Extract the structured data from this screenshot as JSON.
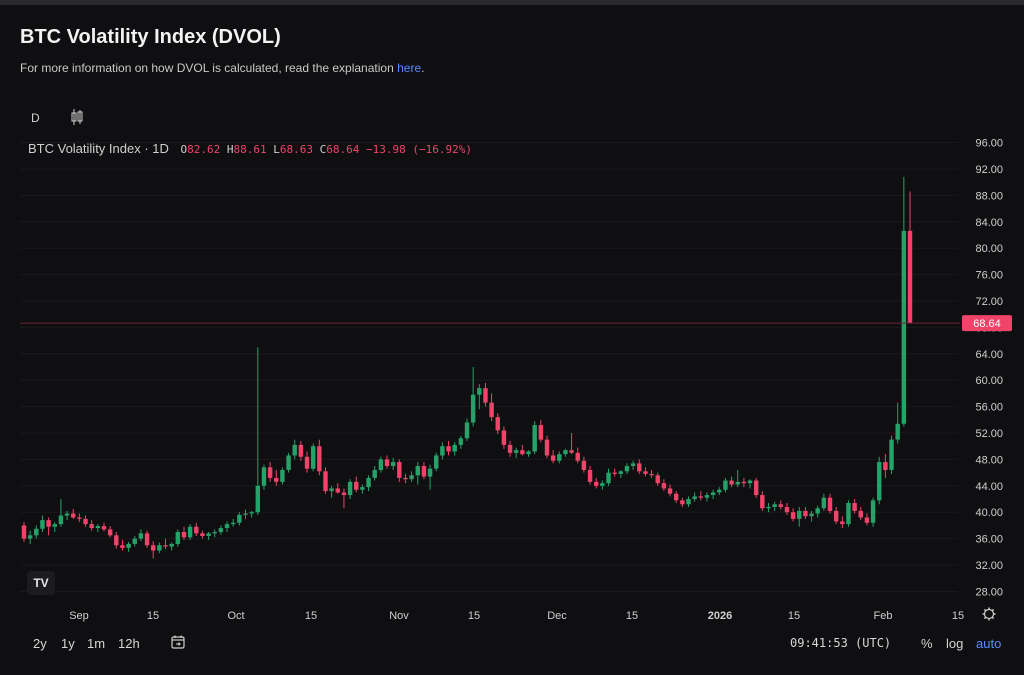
{
  "header": {
    "title": "BTC Volatility Index (DVOL)",
    "subtitle_text": "For more information on how DVOL is calculated, read the explanation ",
    "subtitle_link": "here",
    "subtitle_end": "."
  },
  "toolbar": {
    "interval_label": "D",
    "candle_icon": "candlestick-icon"
  },
  "legend": {
    "symbol": "BTC Volatility Index · 1D",
    "o_label": "O",
    "o": "82.62",
    "h_label": "H",
    "h": "88.61",
    "l_label": "L",
    "l": "68.63",
    "c_label": "C",
    "c": "68.64",
    "change": "−13.98 (−16.92%)"
  },
  "bottom": {
    "ranges": [
      "2y",
      "1y",
      "1m",
      "12h"
    ],
    "time": "09:41:53 (UTC)",
    "percent": "%",
    "log": "log",
    "auto": "auto"
  },
  "colors": {
    "up": "#26a269",
    "down": "#f0436a",
    "grid": "#1a1a1d",
    "text": "#cfcfcf"
  },
  "chart_data": {
    "type": "candlestick",
    "y_ticks": [
      "96.00",
      "92.00",
      "88.00",
      "84.00",
      "80.00",
      "76.00",
      "72.00",
      "68.00",
      "64.00",
      "60.00",
      "56.00",
      "52.00",
      "48.00",
      "44.00",
      "40.00",
      "36.00",
      "32.00",
      "28.00"
    ],
    "ylim": [
      26.4,
      97.6
    ],
    "x_ticks": [
      "Sep",
      "15",
      "Oct",
      "15",
      "Nov",
      "15",
      "Dec",
      "15",
      "2026",
      "15",
      "Feb",
      "15"
    ],
    "last_price_label": "68.64",
    "last_price": 68.64,
    "candles": [
      {
        "o": 38.0,
        "h": 38.5,
        "l": 35.5,
        "c": 36.0
      },
      {
        "o": 36.0,
        "h": 37.2,
        "l": 35.2,
        "c": 36.5
      },
      {
        "o": 36.5,
        "h": 38.0,
        "l": 36.0,
        "c": 37.5
      },
      {
        "o": 37.5,
        "h": 39.5,
        "l": 37.0,
        "c": 38.8
      },
      {
        "o": 38.8,
        "h": 39.2,
        "l": 36.5,
        "c": 37.8
      },
      {
        "o": 37.8,
        "h": 38.5,
        "l": 37.0,
        "c": 38.2
      },
      {
        "o": 38.2,
        "h": 42.0,
        "l": 37.8,
        "c": 39.5
      },
      {
        "o": 39.5,
        "h": 40.2,
        "l": 38.8,
        "c": 39.8
      },
      {
        "o": 39.8,
        "h": 40.5,
        "l": 39.0,
        "c": 39.2
      },
      {
        "o": 39.2,
        "h": 39.8,
        "l": 38.5,
        "c": 39.0
      },
      {
        "o": 39.0,
        "h": 39.5,
        "l": 37.8,
        "c": 38.2
      },
      {
        "o": 38.2,
        "h": 38.8,
        "l": 37.2,
        "c": 37.6
      },
      {
        "o": 37.6,
        "h": 38.2,
        "l": 37.0,
        "c": 37.9
      },
      {
        "o": 37.9,
        "h": 38.4,
        "l": 37.1,
        "c": 37.4
      },
      {
        "o": 37.4,
        "h": 37.9,
        "l": 36.2,
        "c": 36.5
      },
      {
        "o": 36.5,
        "h": 37.0,
        "l": 34.5,
        "c": 35.0
      },
      {
        "o": 35.0,
        "h": 35.8,
        "l": 34.2,
        "c": 34.6
      },
      {
        "o": 34.6,
        "h": 35.5,
        "l": 34.0,
        "c": 35.2
      },
      {
        "o": 35.2,
        "h": 36.4,
        "l": 34.8,
        "c": 36.0
      },
      {
        "o": 36.0,
        "h": 37.4,
        "l": 35.6,
        "c": 36.8
      },
      {
        "o": 36.8,
        "h": 37.2,
        "l": 34.6,
        "c": 35.0
      },
      {
        "o": 35.0,
        "h": 35.6,
        "l": 33.0,
        "c": 34.2
      },
      {
        "o": 34.2,
        "h": 35.4,
        "l": 33.8,
        "c": 35.0
      },
      {
        "o": 35.0,
        "h": 36.0,
        "l": 34.4,
        "c": 34.8
      },
      {
        "o": 34.8,
        "h": 35.4,
        "l": 34.2,
        "c": 35.2
      },
      {
        "o": 35.2,
        "h": 37.4,
        "l": 34.8,
        "c": 37.0
      },
      {
        "o": 37.0,
        "h": 37.8,
        "l": 35.8,
        "c": 36.2
      },
      {
        "o": 36.2,
        "h": 38.2,
        "l": 35.8,
        "c": 37.8
      },
      {
        "o": 37.8,
        "h": 38.4,
        "l": 36.4,
        "c": 36.8
      },
      {
        "o": 36.8,
        "h": 37.2,
        "l": 36.0,
        "c": 36.4
      },
      {
        "o": 36.4,
        "h": 37.0,
        "l": 35.8,
        "c": 36.8
      },
      {
        "o": 36.8,
        "h": 37.4,
        "l": 36.2,
        "c": 37.0
      },
      {
        "o": 37.0,
        "h": 38.0,
        "l": 36.6,
        "c": 37.6
      },
      {
        "o": 37.6,
        "h": 38.6,
        "l": 37.0,
        "c": 38.2
      },
      {
        "o": 38.2,
        "h": 39.0,
        "l": 37.8,
        "c": 38.4
      },
      {
        "o": 38.4,
        "h": 40.0,
        "l": 38.0,
        "c": 39.6
      },
      {
        "o": 39.6,
        "h": 40.4,
        "l": 39.0,
        "c": 39.8
      },
      {
        "o": 39.8,
        "h": 40.2,
        "l": 39.2,
        "c": 40.0
      },
      {
        "o": 40.0,
        "h": 65.0,
        "l": 39.6,
        "c": 44.0
      },
      {
        "o": 44.0,
        "h": 47.2,
        "l": 43.4,
        "c": 46.8
      },
      {
        "o": 46.8,
        "h": 47.6,
        "l": 44.6,
        "c": 45.2
      },
      {
        "o": 45.2,
        "h": 46.4,
        "l": 44.0,
        "c": 44.6
      },
      {
        "o": 44.6,
        "h": 46.8,
        "l": 44.2,
        "c": 46.4
      },
      {
        "o": 46.4,
        "h": 49.0,
        "l": 46.0,
        "c": 48.6
      },
      {
        "o": 48.6,
        "h": 51.0,
        "l": 48.0,
        "c": 50.2
      },
      {
        "o": 50.2,
        "h": 50.8,
        "l": 47.8,
        "c": 48.4
      },
      {
        "o": 48.4,
        "h": 49.2,
        "l": 46.0,
        "c": 46.6
      },
      {
        "o": 46.6,
        "h": 50.4,
        "l": 46.2,
        "c": 50.0
      },
      {
        "o": 50.0,
        "h": 51.0,
        "l": 45.6,
        "c": 46.2
      },
      {
        "o": 46.2,
        "h": 46.8,
        "l": 42.8,
        "c": 43.2
      },
      {
        "o": 43.2,
        "h": 44.0,
        "l": 42.2,
        "c": 43.6
      },
      {
        "o": 43.6,
        "h": 44.4,
        "l": 42.8,
        "c": 43.0
      },
      {
        "o": 43.0,
        "h": 43.6,
        "l": 40.6,
        "c": 42.6
      },
      {
        "o": 42.6,
        "h": 45.0,
        "l": 42.0,
        "c": 44.6
      },
      {
        "o": 44.6,
        "h": 45.4,
        "l": 43.0,
        "c": 43.4
      },
      {
        "o": 43.4,
        "h": 44.2,
        "l": 42.8,
        "c": 43.8
      },
      {
        "o": 43.8,
        "h": 45.6,
        "l": 43.2,
        "c": 45.2
      },
      {
        "o": 45.2,
        "h": 47.0,
        "l": 44.8,
        "c": 46.4
      },
      {
        "o": 46.4,
        "h": 48.4,
        "l": 46.0,
        "c": 48.0
      },
      {
        "o": 48.0,
        "h": 48.6,
        "l": 46.6,
        "c": 47.0
      },
      {
        "o": 47.0,
        "h": 48.2,
        "l": 46.4,
        "c": 47.6
      },
      {
        "o": 47.6,
        "h": 48.0,
        "l": 44.6,
        "c": 45.2
      },
      {
        "o": 45.2,
        "h": 45.8,
        "l": 44.4,
        "c": 45.0
      },
      {
        "o": 45.0,
        "h": 46.2,
        "l": 44.6,
        "c": 45.6
      },
      {
        "o": 45.6,
        "h": 47.6,
        "l": 44.2,
        "c": 47.0
      },
      {
        "o": 47.0,
        "h": 47.6,
        "l": 45.0,
        "c": 45.4
      },
      {
        "o": 45.4,
        "h": 47.2,
        "l": 43.4,
        "c": 46.6
      },
      {
        "o": 46.6,
        "h": 49.0,
        "l": 46.2,
        "c": 48.6
      },
      {
        "o": 48.6,
        "h": 50.6,
        "l": 48.0,
        "c": 50.0
      },
      {
        "o": 50.0,
        "h": 50.8,
        "l": 48.6,
        "c": 49.2
      },
      {
        "o": 49.2,
        "h": 50.6,
        "l": 48.6,
        "c": 50.2
      },
      {
        "o": 50.2,
        "h": 51.6,
        "l": 49.6,
        "c": 51.2
      },
      {
        "o": 51.2,
        "h": 54.2,
        "l": 50.8,
        "c": 53.6
      },
      {
        "o": 53.6,
        "h": 62.0,
        "l": 53.0,
        "c": 57.8
      },
      {
        "o": 57.8,
        "h": 59.4,
        "l": 55.6,
        "c": 58.8
      },
      {
        "o": 58.8,
        "h": 59.6,
        "l": 56.0,
        "c": 56.6
      },
      {
        "o": 56.6,
        "h": 58.0,
        "l": 53.8,
        "c": 54.4
      },
      {
        "o": 54.4,
        "h": 55.0,
        "l": 51.8,
        "c": 52.4
      },
      {
        "o": 52.4,
        "h": 53.0,
        "l": 49.6,
        "c": 50.2
      },
      {
        "o": 50.2,
        "h": 50.8,
        "l": 48.4,
        "c": 49.0
      },
      {
        "o": 49.0,
        "h": 49.8,
        "l": 48.2,
        "c": 49.4
      },
      {
        "o": 49.4,
        "h": 50.2,
        "l": 48.6,
        "c": 48.8
      },
      {
        "o": 48.8,
        "h": 49.4,
        "l": 48.4,
        "c": 49.2
      },
      {
        "o": 49.2,
        "h": 53.8,
        "l": 48.8,
        "c": 53.2
      },
      {
        "o": 53.2,
        "h": 54.0,
        "l": 50.6,
        "c": 51.0
      },
      {
        "o": 51.0,
        "h": 51.6,
        "l": 48.2,
        "c": 48.6
      },
      {
        "o": 48.6,
        "h": 49.4,
        "l": 47.4,
        "c": 47.8
      },
      {
        "o": 47.8,
        "h": 49.2,
        "l": 47.4,
        "c": 48.8
      },
      {
        "o": 48.8,
        "h": 49.6,
        "l": 48.4,
        "c": 49.4
      },
      {
        "o": 49.4,
        "h": 52.0,
        "l": 48.8,
        "c": 49.0
      },
      {
        "o": 49.0,
        "h": 49.8,
        "l": 47.4,
        "c": 47.8
      },
      {
        "o": 47.8,
        "h": 48.4,
        "l": 46.0,
        "c": 46.4
      },
      {
        "o": 46.4,
        "h": 47.0,
        "l": 44.2,
        "c": 44.6
      },
      {
        "o": 44.6,
        "h": 45.2,
        "l": 43.6,
        "c": 44.0
      },
      {
        "o": 44.0,
        "h": 44.8,
        "l": 43.4,
        "c": 44.4
      },
      {
        "o": 44.4,
        "h": 46.6,
        "l": 44.0,
        "c": 46.0
      },
      {
        "o": 46.0,
        "h": 46.6,
        "l": 45.4,
        "c": 45.8
      },
      {
        "o": 45.8,
        "h": 46.4,
        "l": 45.2,
        "c": 46.2
      },
      {
        "o": 46.2,
        "h": 47.4,
        "l": 45.8,
        "c": 47.0
      },
      {
        "o": 47.0,
        "h": 47.8,
        "l": 46.4,
        "c": 47.4
      },
      {
        "o": 47.4,
        "h": 48.0,
        "l": 45.8,
        "c": 46.2
      },
      {
        "o": 46.2,
        "h": 46.8,
        "l": 45.4,
        "c": 45.8
      },
      {
        "o": 45.8,
        "h": 46.4,
        "l": 45.2,
        "c": 45.6
      },
      {
        "o": 45.6,
        "h": 46.0,
        "l": 44.0,
        "c": 44.4
      },
      {
        "o": 44.4,
        "h": 45.0,
        "l": 43.2,
        "c": 43.6
      },
      {
        "o": 43.6,
        "h": 44.2,
        "l": 42.4,
        "c": 42.8
      },
      {
        "o": 42.8,
        "h": 43.2,
        "l": 41.4,
        "c": 41.8
      },
      {
        "o": 41.8,
        "h": 42.2,
        "l": 40.8,
        "c": 41.2
      },
      {
        "o": 41.2,
        "h": 42.4,
        "l": 40.8,
        "c": 42.0
      },
      {
        "o": 42.0,
        "h": 43.0,
        "l": 41.6,
        "c": 42.4
      },
      {
        "o": 42.4,
        "h": 43.2,
        "l": 41.8,
        "c": 42.2
      },
      {
        "o": 42.2,
        "h": 43.0,
        "l": 41.6,
        "c": 42.6
      },
      {
        "o": 42.6,
        "h": 43.4,
        "l": 42.0,
        "c": 43.0
      },
      {
        "o": 43.0,
        "h": 43.8,
        "l": 42.6,
        "c": 43.4
      },
      {
        "o": 43.4,
        "h": 45.2,
        "l": 43.0,
        "c": 44.8
      },
      {
        "o": 44.8,
        "h": 45.4,
        "l": 43.8,
        "c": 44.2
      },
      {
        "o": 44.2,
        "h": 46.4,
        "l": 43.8,
        "c": 44.6
      },
      {
        "o": 44.6,
        "h": 45.2,
        "l": 43.8,
        "c": 44.4
      },
      {
        "o": 44.4,
        "h": 45.0,
        "l": 43.6,
        "c": 44.8
      },
      {
        "o": 44.8,
        "h": 45.2,
        "l": 42.2,
        "c": 42.6
      },
      {
        "o": 42.6,
        "h": 43.2,
        "l": 40.2,
        "c": 40.6
      },
      {
        "o": 40.6,
        "h": 41.4,
        "l": 40.0,
        "c": 40.8
      },
      {
        "o": 40.8,
        "h": 41.6,
        "l": 40.2,
        "c": 41.2
      },
      {
        "o": 41.2,
        "h": 41.8,
        "l": 40.4,
        "c": 40.8
      },
      {
        "o": 40.8,
        "h": 41.4,
        "l": 39.6,
        "c": 40.0
      },
      {
        "o": 40.0,
        "h": 40.6,
        "l": 38.6,
        "c": 39.0
      },
      {
        "o": 39.0,
        "h": 40.8,
        "l": 37.8,
        "c": 40.2
      },
      {
        "o": 40.2,
        "h": 40.8,
        "l": 39.0,
        "c": 39.4
      },
      {
        "o": 39.4,
        "h": 40.2,
        "l": 38.6,
        "c": 39.8
      },
      {
        "o": 39.8,
        "h": 41.0,
        "l": 39.2,
        "c": 40.6
      },
      {
        "o": 40.6,
        "h": 42.8,
        "l": 40.2,
        "c": 42.2
      },
      {
        "o": 42.2,
        "h": 42.8,
        "l": 39.8,
        "c": 40.2
      },
      {
        "o": 40.2,
        "h": 40.8,
        "l": 38.2,
        "c": 38.6
      },
      {
        "o": 38.6,
        "h": 39.4,
        "l": 37.6,
        "c": 38.2
      },
      {
        "o": 38.2,
        "h": 41.8,
        "l": 37.8,
        "c": 41.4
      },
      {
        "o": 41.4,
        "h": 42.0,
        "l": 39.8,
        "c": 40.2
      },
      {
        "o": 40.2,
        "h": 40.8,
        "l": 38.8,
        "c": 39.2
      },
      {
        "o": 39.2,
        "h": 39.8,
        "l": 38.0,
        "c": 38.4
      },
      {
        "o": 38.4,
        "h": 42.2,
        "l": 37.8,
        "c": 41.8
      },
      {
        "o": 41.8,
        "h": 48.4,
        "l": 41.2,
        "c": 47.6
      },
      {
        "o": 47.6,
        "h": 48.8,
        "l": 45.2,
        "c": 46.4
      },
      {
        "o": 46.4,
        "h": 51.6,
        "l": 45.8,
        "c": 51.0
      },
      {
        "o": 51.0,
        "h": 56.6,
        "l": 50.4,
        "c": 53.4
      },
      {
        "o": 53.4,
        "h": 90.8,
        "l": 53.0,
        "c": 82.62
      },
      {
        "o": 82.62,
        "h": 88.61,
        "l": 68.63,
        "c": 68.64
      }
    ]
  }
}
